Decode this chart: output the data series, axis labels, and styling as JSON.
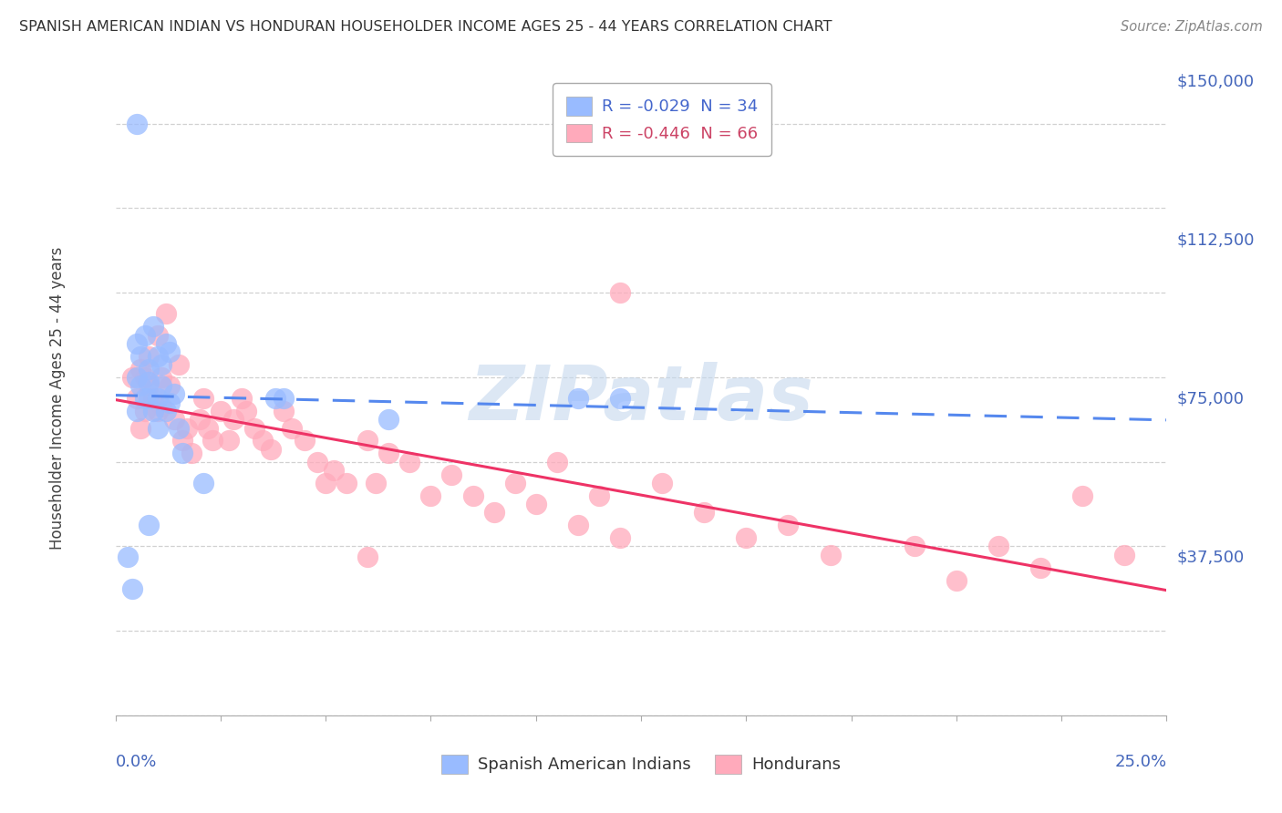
{
  "title": "SPANISH AMERICAN INDIAN VS HONDURAN HOUSEHOLDER INCOME AGES 25 - 44 YEARS CORRELATION CHART",
  "source": "Source: ZipAtlas.com",
  "ylabel": "Householder Income Ages 25 - 44 years",
  "yticks": [
    0,
    37500,
    75000,
    112500,
    150000
  ],
  "ytick_labels": [
    "",
    "$37,500",
    "$75,000",
    "$112,500",
    "$150,000"
  ],
  "xticks": [
    0.0,
    0.025,
    0.05,
    0.075,
    0.1,
    0.125,
    0.15,
    0.175,
    0.2,
    0.225,
    0.25
  ],
  "xmin": 0.0,
  "xmax": 0.25,
  "ymin": 0,
  "ymax": 150000,
  "legend_top_blue": "R = -0.029  N = 34",
  "legend_top_pink": "R = -0.446  N = 66",
  "legend_bottom_labels": [
    "Spanish American Indians",
    "Hondurans"
  ],
  "watermark": "ZIPatlas",
  "blue_scatter_x": [
    0.003,
    0.004,
    0.005,
    0.005,
    0.005,
    0.006,
    0.006,
    0.007,
    0.007,
    0.008,
    0.008,
    0.008,
    0.009,
    0.009,
    0.01,
    0.01,
    0.01,
    0.011,
    0.011,
    0.012,
    0.012,
    0.013,
    0.013,
    0.014,
    0.015,
    0.016,
    0.021,
    0.038,
    0.04,
    0.065,
    0.11,
    0.12,
    0.005,
    0.008
  ],
  "blue_scatter_y": [
    37500,
    30000,
    80000,
    72000,
    88000,
    85000,
    78000,
    90000,
    75000,
    82000,
    79000,
    75000,
    92000,
    72000,
    85000,
    75000,
    68000,
    83000,
    78000,
    88000,
    72000,
    86000,
    74000,
    76000,
    68000,
    62000,
    55000,
    75000,
    75000,
    70000,
    75000,
    75000,
    140000,
    45000
  ],
  "pink_scatter_x": [
    0.004,
    0.005,
    0.006,
    0.006,
    0.007,
    0.007,
    0.008,
    0.008,
    0.009,
    0.01,
    0.01,
    0.011,
    0.011,
    0.012,
    0.013,
    0.014,
    0.015,
    0.016,
    0.017,
    0.018,
    0.02,
    0.021,
    0.022,
    0.023,
    0.025,
    0.027,
    0.028,
    0.03,
    0.031,
    0.033,
    0.035,
    0.037,
    0.04,
    0.042,
    0.045,
    0.048,
    0.05,
    0.052,
    0.055,
    0.06,
    0.062,
    0.065,
    0.07,
    0.075,
    0.08,
    0.085,
    0.09,
    0.095,
    0.1,
    0.105,
    0.11,
    0.115,
    0.12,
    0.13,
    0.14,
    0.15,
    0.16,
    0.17,
    0.19,
    0.2,
    0.21,
    0.22,
    0.23,
    0.24,
    0.12,
    0.06
  ],
  "pink_scatter_y": [
    80000,
    75000,
    82000,
    68000,
    80000,
    72000,
    78000,
    85000,
    75000,
    72000,
    90000,
    80000,
    73000,
    95000,
    78000,
    70000,
    83000,
    65000,
    68000,
    62000,
    70000,
    75000,
    68000,
    65000,
    72000,
    65000,
    70000,
    75000,
    72000,
    68000,
    65000,
    63000,
    72000,
    68000,
    65000,
    60000,
    55000,
    58000,
    55000,
    65000,
    55000,
    62000,
    60000,
    52000,
    57000,
    52000,
    48000,
    55000,
    50000,
    60000,
    45000,
    52000,
    42000,
    55000,
    48000,
    42000,
    45000,
    38000,
    40000,
    32000,
    40000,
    35000,
    52000,
    38000,
    100000,
    37500
  ],
  "blue_line_color": "#5588ee",
  "pink_line_color": "#ee3366",
  "scatter_blue_color": "#99bbff",
  "scatter_pink_color": "#ffaabb",
  "background_color": "#ffffff",
  "grid_color": "#cccccc",
  "title_color": "#333333",
  "axis_tick_color": "#4466bb",
  "watermark_color": "#c5d8ee",
  "legend_text_blue": "#4466cc",
  "legend_text_pink": "#cc4466"
}
